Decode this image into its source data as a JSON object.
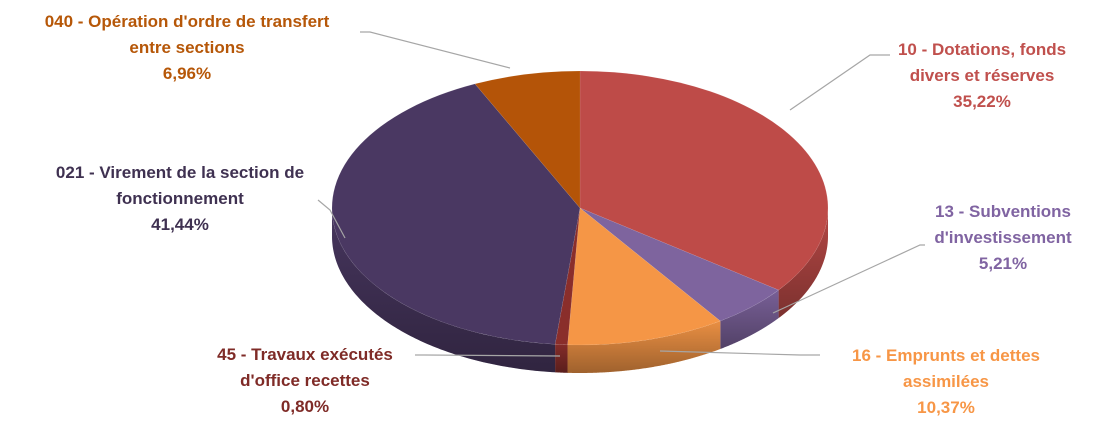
{
  "chart_data": {
    "type": "pie",
    "title": "",
    "slices": [
      {
        "key": "dotations",
        "label_lines": [
          "10 - Dotations, fonds",
          "divers et réserves"
        ],
        "value_label": "35,22%",
        "value": 35.22,
        "color": "#be4b48",
        "label_color": "#c0504d"
      },
      {
        "key": "subventions",
        "label_lines": [
          "13 - Subventions",
          "d'investissement"
        ],
        "value_label": "5,21%",
        "value": 5.21,
        "color": "#7e649e",
        "label_color": "#8064a2"
      },
      {
        "key": "emprunts",
        "label_lines": [
          "16 - Emprunts et dettes",
          "assimilées"
        ],
        "value_label": "10,37%",
        "value": 10.37,
        "color": "#f59646",
        "label_color": "#f79646"
      },
      {
        "key": "travaux",
        "label_lines": [
          "45 - Travaux exécutés",
          "d'office recettes"
        ],
        "value_label": "0,80%",
        "value": 0.8,
        "color": "#8a2e2b",
        "label_color": "#7f2b27"
      },
      {
        "key": "virement",
        "label_lines": [
          "021 - Virement de la section de",
          "fonctionnement"
        ],
        "value_label": "41,44%",
        "value": 41.44,
        "color": "#4a3862",
        "label_color": "#3f3151"
      },
      {
        "key": "operation",
        "label_lines": [
          "040 - Opération d'ordre de transfert",
          "entre sections"
        ],
        "value_label": "6,96%",
        "value": 6.96,
        "color": "#b45408",
        "label_color": "#b65708"
      }
    ]
  }
}
